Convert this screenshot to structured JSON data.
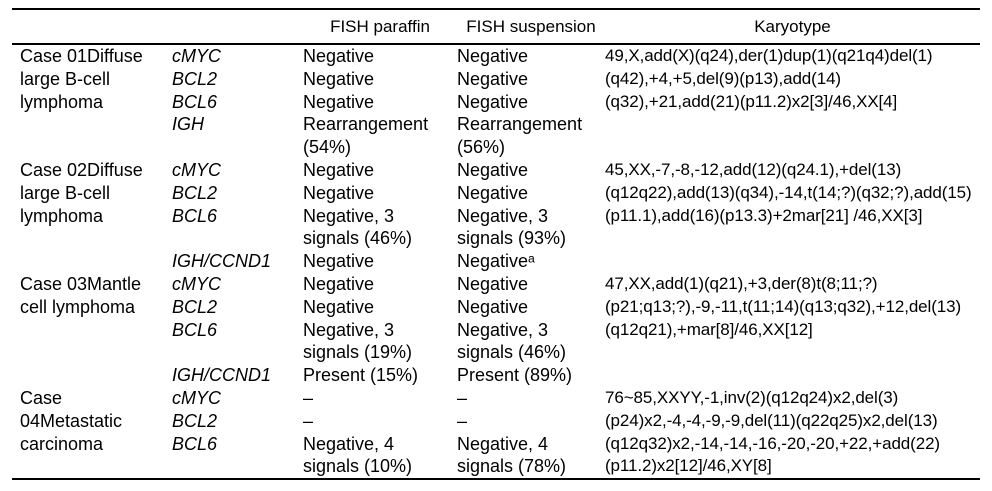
{
  "table": {
    "headers": {
      "case": "",
      "gene": "",
      "fish_paraffin": "FISH paraffin",
      "fish_suspension": "FISH suspension",
      "karyotype": "Karyotype"
    },
    "cases": [
      {
        "label": "Case 01Diffuse\nlarge B-cell\nlymphoma",
        "karyotype": "49,X,add(X)(q24),der(1)dup(1)(q21q4)del(1)\n(q42),+4,+5,del(9)(p13),add(14)\n(q32),+21,add(21)(p11.2)x2[3]/46,XX[4]",
        "genes": [
          {
            "name": "cMYC",
            "paraffin": "Negative",
            "suspension": "Negative"
          },
          {
            "name": "BCL2",
            "paraffin": "Negative",
            "suspension": "Negative"
          },
          {
            "name": "BCL6",
            "paraffin": "Negative",
            "suspension": "Negative"
          },
          {
            "name": "IGH",
            "paraffin": "Rearrangement\n(54%)",
            "suspension": "Rearrangement\n(56%)"
          }
        ]
      },
      {
        "label": "Case 02Diffuse\nlarge B-cell\nlymphoma",
        "karyotype": "45,XX,-7,-8,-12,add(12)(q24.1),+del(13)\n(q12q22),add(13)(q34),-14,t(14;?)(q32;?),add(15)\n(p11.1),add(16)(p13.3)+2mar[21] /46,XX[3]",
        "genes": [
          {
            "name": "cMYC",
            "paraffin": "Negative",
            "suspension": "Negative"
          },
          {
            "name": "BCL2",
            "paraffin": "Negative",
            "suspension": "Negative"
          },
          {
            "name": "BCL6",
            "paraffin": "Negative, 3\nsignals (46%)",
            "suspension": "Negative, 3\nsignals (93%)"
          },
          {
            "name": "IGH/CCND1",
            "paraffin": "Negative",
            "suspension": "Negativeᵃ"
          }
        ]
      },
      {
        "label": "Case 03Mantle\ncell lymphoma",
        "karyotype": "47,XX,add(1)(q21),+3,der(8)t(8;11;?)\n(p21;q13;?),-9,-11,t(11;14)(q13;q32),+12,del(13)\n(q12q21),+mar[8]/46,XX[12]",
        "genes": [
          {
            "name": "cMYC",
            "paraffin": "Negative",
            "suspension": "Negative"
          },
          {
            "name": "BCL2",
            "paraffin": "Negative",
            "suspension": "Negative"
          },
          {
            "name": "BCL6",
            "paraffin": "Negative, 3\nsignals (19%)",
            "suspension": "Negative, 3\nsignals (46%)"
          },
          {
            "name": "IGH/CCND1",
            "paraffin": "Present (15%)",
            "suspension": "Present (89%)"
          }
        ]
      },
      {
        "label": "Case\n04Metastatic\ncarcinoma",
        "karyotype": "76~85,XXYY,-1,inv(2)(q12q24)x2,del(3)\n(p24)x2,-4,-4,-9,-9,del(11)(q22q25)x2,del(13)\n(q12q32)x2,-14,-14,-16,-20,-20,+22,+add(22)\n(p11.2)x2[12]/46,XY[8]",
        "genes": [
          {
            "name": "cMYC",
            "paraffin": "–",
            "suspension": "–"
          },
          {
            "name": "BCL2",
            "paraffin": "–",
            "suspension": "–"
          },
          {
            "name": "BCL6",
            "paraffin": "Negative, 4\nsignals (10%)",
            "suspension": "Negative, 4\nsignals (78%)"
          }
        ]
      }
    ]
  }
}
